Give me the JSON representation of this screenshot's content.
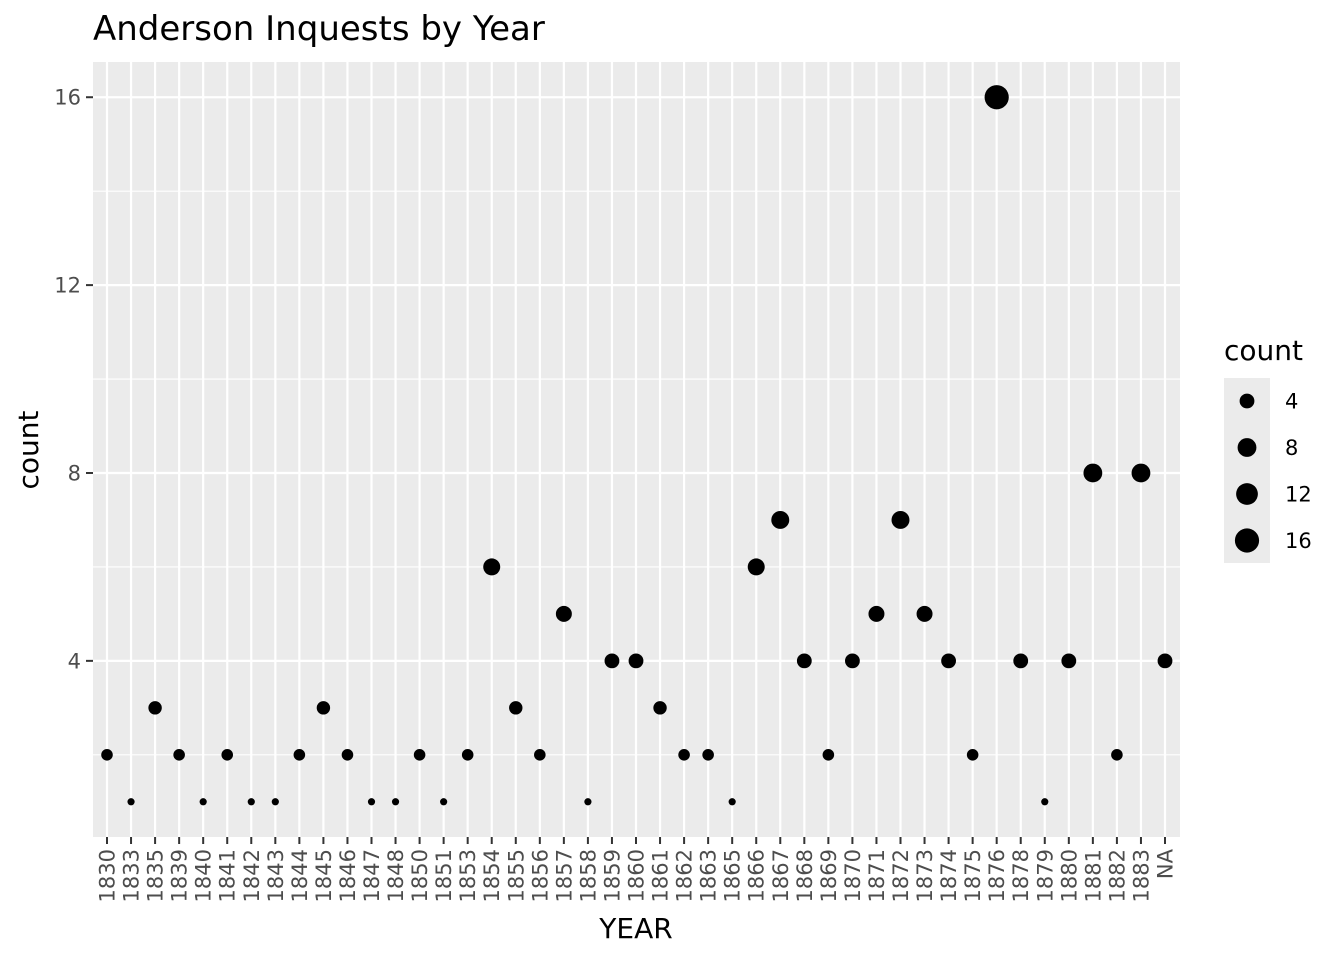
{
  "chart_data": {
    "type": "scatter",
    "title": "Anderson Inquests by Year",
    "xlabel": "YEAR",
    "ylabel": "count",
    "categories": [
      "1830",
      "1833",
      "1835",
      "1839",
      "1840",
      "1841",
      "1842",
      "1843",
      "1844",
      "1845",
      "1846",
      "1847",
      "1848",
      "1850",
      "1851",
      "1853",
      "1854",
      "1855",
      "1856",
      "1857",
      "1858",
      "1859",
      "1860",
      "1861",
      "1862",
      "1863",
      "1865",
      "1866",
      "1867",
      "1868",
      "1869",
      "1870",
      "1871",
      "1872",
      "1873",
      "1874",
      "1875",
      "1876",
      "1878",
      "1879",
      "1880",
      "1881",
      "1882",
      "1883",
      "NA"
    ],
    "values": [
      2,
      1,
      3,
      2,
      1,
      2,
      1,
      1,
      2,
      3,
      2,
      1,
      1,
      2,
      1,
      2,
      6,
      3,
      2,
      5,
      1,
      4,
      4,
      3,
      2,
      2,
      1,
      6,
      7,
      4,
      2,
      4,
      5,
      7,
      5,
      4,
      2,
      16,
      4,
      1,
      4,
      8,
      2,
      8,
      4
    ],
    "ylim": [
      0.25,
      16.75
    ],
    "yticks": [
      4,
      8,
      12,
      16
    ],
    "size_encoding": "count",
    "point_color": "#000000",
    "panel_background": "#ebebeb",
    "grid": true,
    "legend": {
      "title": "count",
      "placement": "right",
      "entries": [
        {
          "label": "4",
          "value": 4
        },
        {
          "label": "8",
          "value": 8
        },
        {
          "label": "12",
          "value": 12
        },
        {
          "label": "16",
          "value": 16
        }
      ]
    }
  }
}
